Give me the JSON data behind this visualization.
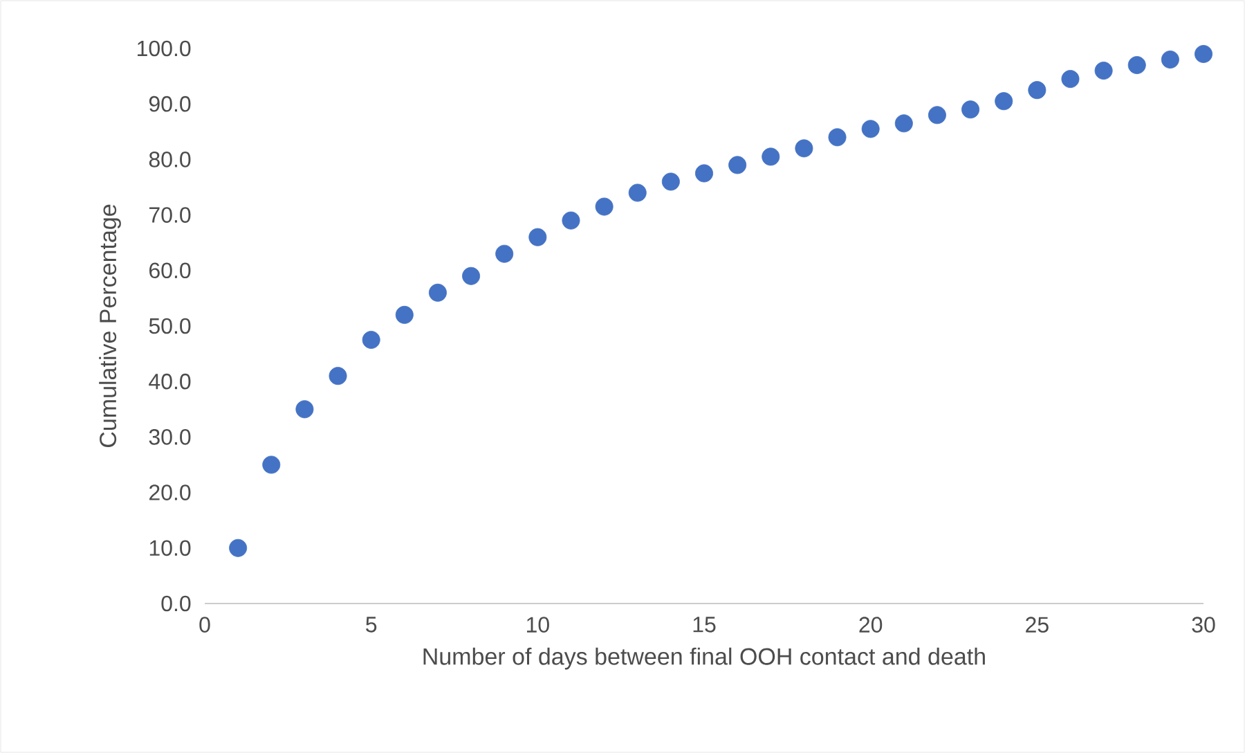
{
  "chart_data": {
    "type": "scatter",
    "xlabel": "Number of days between final OOH contact and death",
    "ylabel": "Cumulative Percentage",
    "x": [
      1,
      2,
      3,
      4,
      5,
      6,
      7,
      8,
      9,
      10,
      11,
      12,
      13,
      14,
      15,
      16,
      17,
      18,
      19,
      20,
      21,
      22,
      23,
      24,
      25,
      26,
      27,
      28,
      29,
      30
    ],
    "series": [
      {
        "color": "#4472c4",
        "values": [
          10,
          25,
          35,
          41,
          47.5,
          52,
          56,
          59,
          63,
          66,
          69,
          71.5,
          74,
          76,
          77.5,
          79,
          80.5,
          82,
          84,
          85.5,
          86.5,
          88,
          89,
          90.5,
          92.5,
          94.5,
          96,
          97,
          98,
          99
        ]
      }
    ],
    "xlim": [
      0,
      30
    ],
    "ylim": [
      0,
      100
    ],
    "xticks": [
      0,
      5,
      10,
      15,
      20,
      25,
      30
    ],
    "yticks": [
      {
        "value": 0,
        "label": "0.0"
      },
      {
        "value": 10,
        "label": "10.0"
      },
      {
        "value": 20,
        "label": "20.0"
      },
      {
        "value": 30,
        "label": "30.0"
      },
      {
        "value": 40,
        "label": "40.0"
      },
      {
        "value": 50,
        "label": "50.0"
      },
      {
        "value": 60,
        "label": "60.0"
      },
      {
        "value": 70,
        "label": "70.0"
      },
      {
        "value": 80,
        "label": "80.0"
      },
      {
        "value": 90,
        "label": "90.0"
      },
      {
        "value": 100,
        "label": "100.0"
      }
    ]
  }
}
